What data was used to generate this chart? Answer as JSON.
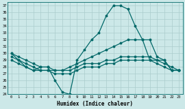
{
  "title": "",
  "xlabel": "Humidex (Indice chaleur)",
  "bg_color": "#cce8e8",
  "line_color": "#006868",
  "grid_color": "#aacccc",
  "xlim": [
    -0.5,
    23.5
  ],
  "ylim": [
    24,
    37.5
  ],
  "yticks": [
    24,
    25,
    26,
    27,
    28,
    29,
    30,
    31,
    32,
    33,
    34,
    35,
    36,
    37
  ],
  "xticks": [
    0,
    1,
    2,
    3,
    4,
    5,
    6,
    7,
    8,
    9,
    10,
    11,
    12,
    13,
    14,
    15,
    16,
    17,
    18,
    19,
    20,
    21,
    22,
    23
  ],
  "line1_x": [
    0,
    1,
    2,
    3,
    4,
    5,
    6,
    7,
    8,
    9,
    10,
    11,
    12,
    13,
    14,
    15,
    16,
    17,
    18,
    19,
    20,
    21,
    22,
    23
  ],
  "line1_y": [
    30,
    29,
    28,
    27.5,
    28,
    28,
    26,
    24.3,
    24,
    29,
    30.5,
    32,
    33,
    35.5,
    37,
    37,
    36.5,
    34,
    32,
    32,
    29.5,
    29,
    27.5,
    27.5
  ],
  "line2_x": [
    0,
    1,
    2,
    3,
    4,
    5,
    6,
    7,
    8,
    9,
    10,
    11,
    12,
    13,
    14,
    15,
    16,
    17,
    18,
    19,
    20,
    21,
    22,
    23
  ],
  "line2_y": [
    30,
    29.5,
    29,
    28.5,
    28,
    28,
    27.5,
    27.5,
    28,
    28.5,
    29,
    29.5,
    30,
    30.5,
    31,
    31.5,
    32,
    32,
    32,
    29,
    29,
    29,
    27.5,
    27.5
  ],
  "line3_x": [
    0,
    1,
    2,
    3,
    4,
    5,
    6,
    7,
    8,
    9,
    10,
    11,
    12,
    13,
    14,
    15,
    16,
    17,
    18,
    19,
    20,
    21,
    22,
    23
  ],
  "line3_y": [
    29.5,
    29,
    28.5,
    28,
    27.5,
    27.5,
    27.5,
    27.5,
    27.5,
    28,
    28.5,
    28.5,
    28.5,
    29,
    29,
    29.5,
    29.5,
    29.5,
    29.5,
    29.5,
    29,
    28.5,
    28,
    27.5
  ],
  "line4_x": [
    0,
    1,
    2,
    3,
    4,
    5,
    6,
    7,
    8,
    9,
    10,
    11,
    12,
    13,
    14,
    15,
    16,
    17,
    18,
    19,
    20,
    21,
    22,
    23
  ],
  "line4_y": [
    29,
    28.5,
    28,
    27.5,
    27.5,
    27.5,
    27,
    27,
    27,
    27.5,
    28,
    28,
    28,
    28.5,
    28.5,
    29,
    29,
    29,
    29,
    29,
    28.5,
    28,
    27.5,
    27.5
  ]
}
